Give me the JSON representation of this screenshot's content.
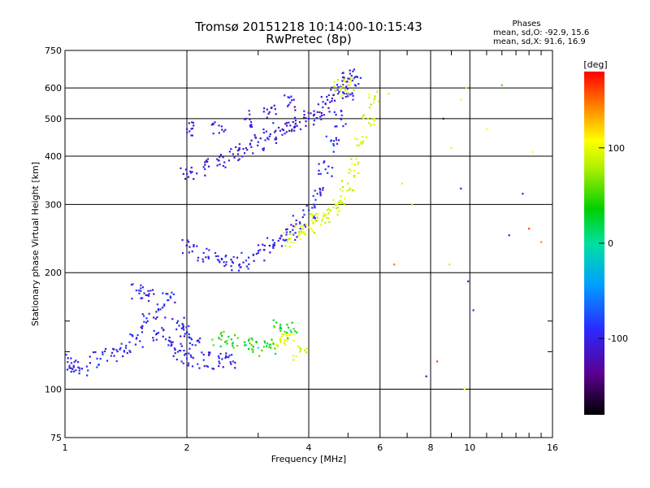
{
  "header": {
    "title_line1": "Tromsø 20151218 10:14:00-10:15:43",
    "title_line2": "RwPretec (8p)",
    "stats_title": "Phases",
    "stats_o": "mean, sd,O: -92.9, 15.6",
    "stats_x": "mean, sd,X:  91.6, 16.9"
  },
  "chart_data": {
    "type": "scatter",
    "xlabel": "Frequency [MHz]",
    "ylabel": "Stationary phase Virtual Height [km]",
    "xscale": "log2",
    "yscale": "log",
    "xlim": [
      1,
      16
    ],
    "ylim": [
      75,
      750
    ],
    "x_ticks": [
      1,
      2,
      4,
      6,
      8,
      10,
      16
    ],
    "x_tick_labels": [
      "1",
      "2",
      "4",
      "6",
      "8",
      "10",
      "16"
    ],
    "y_ticks": [
      75,
      100,
      200,
      300,
      400,
      500,
      600,
      750
    ],
    "y_tick_labels": [
      "75",
      "100",
      "200",
      "300",
      "400",
      "500",
      "600",
      "750"
    ],
    "grid": true,
    "colorbar": {
      "label": "[deg]",
      "range": [
        -180,
        180
      ],
      "ticks": [
        100,
        0,
        -100
      ],
      "tick_labels": [
        "100",
        "0",
        "-100"
      ]
    },
    "series": [
      {
        "phase": -100,
        "color": "#1a3cff",
        "points": [
          [
            1.0,
            118
          ],
          [
            1.05,
            115
          ],
          [
            1.1,
            113
          ],
          [
            1.2,
            120
          ],
          [
            1.3,
            122
          ],
          [
            1.4,
            125
          ],
          [
            1.5,
            135
          ],
          [
            1.6,
            150
          ],
          [
            1.7,
            160
          ],
          [
            1.8,
            170
          ],
          [
            1.9,
            150
          ],
          [
            2.0,
            120
          ],
          [
            2.2,
            119
          ],
          [
            2.4,
            118
          ],
          [
            2.6,
            118
          ],
          [
            1.5,
            180
          ],
          [
            1.6,
            175
          ],
          [
            1.7,
            140
          ],
          [
            1.8,
            130
          ],
          [
            1.9,
            125
          ],
          [
            2.0,
            140
          ],
          [
            2.1,
            130
          ]
        ]
      },
      {
        "phase": -100,
        "color": "#1a3cff",
        "points": [
          [
            2.0,
            235
          ],
          [
            2.2,
            225
          ],
          [
            2.4,
            215
          ],
          [
            2.6,
            212
          ],
          [
            2.8,
            215
          ],
          [
            3.0,
            225
          ],
          [
            3.2,
            235
          ],
          [
            3.4,
            245
          ],
          [
            3.6,
            255
          ],
          [
            3.8,
            270
          ],
          [
            4.0,
            290
          ],
          [
            4.2,
            320
          ],
          [
            4.4,
            370
          ],
          [
            4.6,
            430
          ],
          [
            4.8,
            500
          ],
          [
            5.0,
            580
          ],
          [
            5.2,
            640
          ]
        ]
      },
      {
        "phase": -110,
        "color": "#2030d0",
        "points": [
          [
            2.0,
            360
          ],
          [
            2.2,
            375
          ],
          [
            2.4,
            390
          ],
          [
            2.6,
            405
          ],
          [
            2.8,
            420
          ],
          [
            3.0,
            435
          ],
          [
            3.2,
            450
          ],
          [
            3.4,
            465
          ],
          [
            3.6,
            480
          ],
          [
            3.8,
            490
          ],
          [
            4.0,
            500
          ],
          [
            4.2,
            520
          ],
          [
            4.4,
            545
          ],
          [
            4.6,
            575
          ],
          [
            4.8,
            605
          ],
          [
            5.0,
            635
          ],
          [
            2.0,
            470
          ],
          [
            2.4,
            480
          ],
          [
            2.8,
            500
          ],
          [
            3.2,
            520
          ],
          [
            3.6,
            550
          ]
        ]
      },
      {
        "phase": 95,
        "color": "#f2e600",
        "points": [
          [
            3.6,
            245
          ],
          [
            3.8,
            252
          ],
          [
            4.0,
            262
          ],
          [
            4.2,
            272
          ],
          [
            4.4,
            282
          ],
          [
            4.6,
            295
          ],
          [
            4.8,
            315
          ],
          [
            5.0,
            340
          ],
          [
            5.2,
            380
          ],
          [
            5.4,
            430
          ],
          [
            5.6,
            500
          ],
          [
            5.8,
            560
          ],
          [
            3.4,
            135
          ],
          [
            3.6,
            138
          ],
          [
            3.8,
            125
          ],
          [
            4.8,
            600
          ],
          [
            5.0,
            610
          ]
        ]
      },
      {
        "phase": 40,
        "color": "#39c8ff",
        "points": [
          [
            2.4,
            135
          ],
          [
            2.6,
            132
          ],
          [
            2.8,
            130
          ],
          [
            3.0,
            128
          ],
          [
            3.2,
            130
          ],
          [
            3.4,
            145
          ],
          [
            3.6,
            142
          ]
        ]
      }
    ],
    "sparse_points": [
      [
        6.3,
        580,
        120
      ],
      [
        6.5,
        210,
        150
      ],
      [
        6.8,
        340,
        95
      ],
      [
        7.2,
        300,
        90
      ],
      [
        7.8,
        108,
        -130
      ],
      [
        8.3,
        118,
        160
      ],
      [
        8.6,
        500,
        -150
      ],
      [
        9.0,
        420,
        100
      ],
      [
        9.5,
        560,
        110
      ],
      [
        9.8,
        600,
        95
      ],
      [
        9.9,
        190,
        -100
      ],
      [
        10.2,
        160,
        -100
      ],
      [
        11.0,
        470,
        110
      ],
      [
        12.0,
        610,
        50
      ],
      [
        12.5,
        250,
        -100
      ],
      [
        13.5,
        320,
        -100
      ],
      [
        14.0,
        260,
        160
      ],
      [
        14.3,
        410,
        110
      ],
      [
        15.0,
        240,
        140
      ],
      [
        9.7,
        100,
        110
      ],
      [
        9.5,
        330,
        -100
      ],
      [
        8.9,
        210,
        120
      ]
    ]
  }
}
